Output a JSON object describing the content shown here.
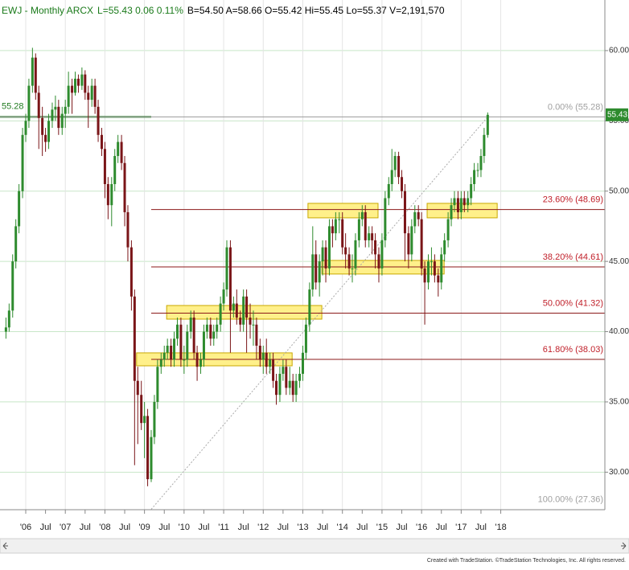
{
  "chart_data": {
    "type": "candlestick",
    "title_parts": [
      {
        "text": "EWJ - Monthly ARCX",
        "color": "#1a7a1a"
      },
      {
        "text": "L=55.43 0.06 0.11%",
        "color": "#1a7a1a"
      },
      {
        "text": "B=54.50 A=58.66 O=55.42 Hi=55.45 Lo=55.37 V=2,191,570",
        "color": "#000000"
      }
    ],
    "credit": "Created with TradeStation. ©TradeStation Technologies, Inc. All rights reserved.",
    "up_color": "#2e8b2e",
    "down_color": "#7a1518",
    "xlim": [
      2005.35,
      2020.63
    ],
    "ylim": [
      27.33,
      63.6
    ],
    "yticks": [
      {
        "value": 30,
        "label": "30.00"
      },
      {
        "value": 35,
        "label": "35.00"
      },
      {
        "value": 40,
        "label": "40.00"
      },
      {
        "value": 45,
        "label": "45.00"
      },
      {
        "value": 50,
        "label": "50.00"
      },
      {
        "value": 55,
        "label": "55.00"
      },
      {
        "value": 60,
        "label": "60.00"
      }
    ],
    "xticks": [
      {
        "value": 2006,
        "label": "'06"
      },
      {
        "value": 2006.5,
        "label": "Jul"
      },
      {
        "value": 2007,
        "label": "'07"
      },
      {
        "value": 2007.5,
        "label": "Jul"
      },
      {
        "value": 2008,
        "label": "'08"
      },
      {
        "value": 2008.5,
        "label": "Jul"
      },
      {
        "value": 2009,
        "label": "'09"
      },
      {
        "value": 2009.5,
        "label": "Jul"
      },
      {
        "value": 2010,
        "label": "'10"
      },
      {
        "value": 2010.5,
        "label": "Jul"
      },
      {
        "value": 2011,
        "label": "'11"
      },
      {
        "value": 2011.5,
        "label": "Jul"
      },
      {
        "value": 2012,
        "label": "'12"
      },
      {
        "value": 2012.5,
        "label": "Jul"
      },
      {
        "value": 2013,
        "label": "'13"
      },
      {
        "value": 2013.5,
        "label": "Jul"
      },
      {
        "value": 2014,
        "label": "'14"
      },
      {
        "value": 2014.5,
        "label": "Jul"
      },
      {
        "value": 2015,
        "label": "'15"
      },
      {
        "value": 2015.5,
        "label": "Jul"
      },
      {
        "value": 2016,
        "label": "'16"
      },
      {
        "value": 2016.5,
        "label": "Jul"
      },
      {
        "value": 2017,
        "label": "'17"
      },
      {
        "value": 2017.5,
        "label": "Jul"
      },
      {
        "value": 2018,
        "label": "'18"
      }
    ],
    "x": [
      2005.5,
      2005.58,
      2005.67,
      2005.75,
      2005.83,
      2005.92,
      2006,
      2006.08,
      2006.17,
      2006.25,
      2006.33,
      2006.42,
      2006.5,
      2006.58,
      2006.67,
      2006.75,
      2006.83,
      2006.92,
      2007,
      2007.08,
      2007.17,
      2007.25,
      2007.33,
      2007.42,
      2007.5,
      2007.58,
      2007.67,
      2007.75,
      2007.83,
      2007.92,
      2008,
      2008.08,
      2008.17,
      2008.25,
      2008.33,
      2008.42,
      2008.5,
      2008.58,
      2008.67,
      2008.75,
      2008.83,
      2008.92,
      2009,
      2009.08,
      2009.17,
      2009.25,
      2009.33,
      2009.42,
      2009.5,
      2009.58,
      2009.67,
      2009.75,
      2009.83,
      2009.92,
      2010,
      2010.08,
      2010.17,
      2010.25,
      2010.33,
      2010.42,
      2010.5,
      2010.58,
      2010.67,
      2010.75,
      2010.83,
      2010.92,
      2011,
      2011.08,
      2011.17,
      2011.25,
      2011.33,
      2011.42,
      2011.5,
      2011.58,
      2011.67,
      2011.75,
      2011.83,
      2011.92,
      2012,
      2012.08,
      2012.17,
      2012.25,
      2012.33,
      2012.42,
      2012.5,
      2012.58,
      2012.67,
      2012.75,
      2012.83,
      2012.92,
      2013,
      2013.08,
      2013.17,
      2013.25,
      2013.33,
      2013.42,
      2013.5,
      2013.58,
      2013.67,
      2013.75,
      2013.83,
      2013.92,
      2014,
      2014.08,
      2014.17,
      2014.25,
      2014.33,
      2014.42,
      2014.5,
      2014.58,
      2014.67,
      2014.75,
      2014.83,
      2014.92,
      2015,
      2015.08,
      2015.17,
      2015.25,
      2015.33,
      2015.42,
      2015.5,
      2015.58,
      2015.67,
      2015.75,
      2015.83,
      2015.92,
      2016,
      2016.08,
      2016.17,
      2016.25,
      2016.33,
      2016.42,
      2016.5,
      2016.58,
      2016.67,
      2016.75,
      2016.83,
      2016.92,
      2017,
      2017.08,
      2017.17,
      2017.25,
      2017.33,
      2017.42,
      2017.5,
      2017.58,
      2017.67
    ],
    "open": [
      40.0,
      40.3,
      41.5,
      45.0,
      47.5,
      50.0,
      54.0,
      55.0,
      57.5,
      59.5,
      57.0,
      55.2,
      54.0,
      53.5,
      55.0,
      55.8,
      56.0,
      54.5,
      55.5,
      56.0,
      57.5,
      57.0,
      58.0,
      57.5,
      58.3,
      57.0,
      56.5,
      57.5,
      56.0,
      54.0,
      53.0,
      50.5,
      49.0,
      50.5,
      52.5,
      53.5,
      52.0,
      48.5,
      46.0,
      42.5,
      36.5,
      35.5,
      33.5,
      34.0,
      29.5,
      32.5,
      35.0,
      37.5,
      38.0,
      38.5,
      39.0,
      38.0,
      39.5,
      40.5,
      38.0,
      38.0,
      40.0,
      41.0,
      38.5,
      37.5,
      38.0,
      40.0,
      40.5,
      39.5,
      40.0,
      40.5,
      42.0,
      43.0,
      46.0,
      41.5,
      42.0,
      41.0,
      40.5,
      42.5,
      41.0,
      40.5,
      40.5,
      39.0,
      38.0,
      38.5,
      37.5,
      38.0,
      36.5,
      35.5,
      37.0,
      37.5,
      36.0,
      36.5,
      35.5,
      36.5,
      37.0,
      38.5,
      40.5,
      43.0,
      45.5,
      43.5,
      45.0,
      46.0,
      44.5,
      47.5,
      47.0,
      48.0,
      48.0,
      46.0,
      45.5,
      44.5,
      44.5,
      46.5,
      48.0,
      48.5,
      46.5,
      47.0,
      46.5,
      45.5,
      44.5,
      46.5,
      49.5,
      50.5,
      51.5,
      52.5,
      51.0,
      50.0,
      47.0,
      45.5,
      47.5,
      48.5,
      48.0,
      44.5,
      43.5,
      45.0,
      45.0,
      44.0,
      43.5,
      45.5,
      46.5,
      48.0,
      49.0,
      49.5,
      48.5,
      49.5,
      49.0,
      49.5,
      50.5,
      51.5,
      51.5,
      52.5,
      54.0
    ],
    "high": [
      41.0,
      42.0,
      45.5,
      48.0,
      50.5,
      54.5,
      55.5,
      58.0,
      60.2,
      59.8,
      57.5,
      56.0,
      54.5,
      55.5,
      56.3,
      56.8,
      56.5,
      56.0,
      56.5,
      58.5,
      58.0,
      58.5,
      58.3,
      58.8,
      58.6,
      57.5,
      58.0,
      58.0,
      56.5,
      54.5,
      53.5,
      51.0,
      51.0,
      53.0,
      54.0,
      54.0,
      52.5,
      49.0,
      46.5,
      43.0,
      37.5,
      36.5,
      35.0,
      34.5,
      33.0,
      35.5,
      38.0,
      38.5,
      39.0,
      39.5,
      39.5,
      40.0,
      41.0,
      41.0,
      39.0,
      40.5,
      41.5,
      41.5,
      39.0,
      38.5,
      40.5,
      41.0,
      41.0,
      40.5,
      41.0,
      42.5,
      43.5,
      46.5,
      46.5,
      42.5,
      43.0,
      41.5,
      43.0,
      43.0,
      42.0,
      41.5,
      41.0,
      39.5,
      39.0,
      39.5,
      38.5,
      38.5,
      37.0,
      37.5,
      38.0,
      38.0,
      37.5,
      37.0,
      37.0,
      37.5,
      39.0,
      41.0,
      43.5,
      47.5,
      46.5,
      45.5,
      46.5,
      46.5,
      48.0,
      48.0,
      48.5,
      48.5,
      48.5,
      47.0,
      46.0,
      45.5,
      47.0,
      48.5,
      49.0,
      49.0,
      47.5,
      47.5,
      47.0,
      46.0,
      47.0,
      50.0,
      51.0,
      53.0,
      52.8,
      52.8,
      51.5,
      50.5,
      47.5,
      48.0,
      49.0,
      49.0,
      48.5,
      45.0,
      45.5,
      46.0,
      45.5,
      44.5,
      46.0,
      47.0,
      48.5,
      49.5,
      50.0,
      50.0,
      50.0,
      50.0,
      50.0,
      51.0,
      52.0,
      52.0,
      53.0,
      54.5,
      55.6
    ],
    "low": [
      39.5,
      40.0,
      41.0,
      44.5,
      47.0,
      49.5,
      53.5,
      54.5,
      57.0,
      56.5,
      53.0,
      52.5,
      52.8,
      53.0,
      54.5,
      55.0,
      54.0,
      54.0,
      54.5,
      55.5,
      55.5,
      56.8,
      57.0,
      57.2,
      56.5,
      54.5,
      56.0,
      55.5,
      53.5,
      52.5,
      49.5,
      48.0,
      47.5,
      50.0,
      52.0,
      51.5,
      47.5,
      45.0,
      41.5,
      30.5,
      32.0,
      33.0,
      31.0,
      29.0,
      29.3,
      32.0,
      34.5,
      37.0,
      37.5,
      38.0,
      37.5,
      37.5,
      39.0,
      37.5,
      37.0,
      37.5,
      39.5,
      38.0,
      36.5,
      37.0,
      37.5,
      39.5,
      39.0,
      39.0,
      39.5,
      40.0,
      41.5,
      42.5,
      38.5,
      41.0,
      40.5,
      40.0,
      40.0,
      38.5,
      39.5,
      39.0,
      38.0,
      37.5,
      37.0,
      37.0,
      37.0,
      36.0,
      34.8,
      35.0,
      36.5,
      35.5,
      35.5,
      35.0,
      35.0,
      36.0,
      36.5,
      38.0,
      40.0,
      42.5,
      43.0,
      42.5,
      44.0,
      43.5,
      44.0,
      46.0,
      46.5,
      47.0,
      45.5,
      44.5,
      44.0,
      43.5,
      44.0,
      46.0,
      47.5,
      46.0,
      46.0,
      45.5,
      44.5,
      43.5,
      44.0,
      46.0,
      49.0,
      50.0,
      51.0,
      50.5,
      49.5,
      45.0,
      44.5,
      45.0,
      47.0,
      47.5,
      44.0,
      40.5,
      43.0,
      44.0,
      43.5,
      42.5,
      43.0,
      45.0,
      46.0,
      47.5,
      48.5,
      48.0,
      48.0,
      48.5,
      48.5,
      49.0,
      50.0,
      51.0,
      51.0,
      52.0,
      53.8
    ],
    "close": [
      40.3,
      41.5,
      45.0,
      47.5,
      50.0,
      54.0,
      55.0,
      57.5,
      59.5,
      57.0,
      55.2,
      54.0,
      53.5,
      55.0,
      55.8,
      56.0,
      54.5,
      55.5,
      56.0,
      57.5,
      57.0,
      58.0,
      57.5,
      58.3,
      57.0,
      56.5,
      57.5,
      56.0,
      54.0,
      53.0,
      50.5,
      49.0,
      50.5,
      52.5,
      53.5,
      52.0,
      48.5,
      46.0,
      42.5,
      36.5,
      35.5,
      33.5,
      34.0,
      29.5,
      32.5,
      35.0,
      37.5,
      38.0,
      38.5,
      39.0,
      38.0,
      39.5,
      40.5,
      38.0,
      38.0,
      40.0,
      41.0,
      38.5,
      37.5,
      38.0,
      40.0,
      40.5,
      39.5,
      40.0,
      40.5,
      42.0,
      43.0,
      46.0,
      41.5,
      42.0,
      41.0,
      40.5,
      42.5,
      41.0,
      40.5,
      40.5,
      39.0,
      38.0,
      38.5,
      37.5,
      38.0,
      36.5,
      35.5,
      37.0,
      37.5,
      36.0,
      36.5,
      35.5,
      36.5,
      37.0,
      38.5,
      40.5,
      43.0,
      45.5,
      43.5,
      45.0,
      46.0,
      44.5,
      47.5,
      47.0,
      48.0,
      48.0,
      46.0,
      45.5,
      44.5,
      44.5,
      46.5,
      48.0,
      48.5,
      46.5,
      47.0,
      46.5,
      45.5,
      44.5,
      46.5,
      49.5,
      50.5,
      51.5,
      52.5,
      51.0,
      50.0,
      47.0,
      45.5,
      47.5,
      48.5,
      48.0,
      44.5,
      43.5,
      45.0,
      45.0,
      44.0,
      43.5,
      45.5,
      46.5,
      48.0,
      49.0,
      49.5,
      48.5,
      49.5,
      49.0,
      49.5,
      50.5,
      51.5,
      51.5,
      52.5,
      54.0,
      55.43
    ],
    "zones": [
      {
        "x": [
          2008.8,
          2012.73
        ],
        "y": [
          37.57,
          38.49
        ]
      },
      {
        "x": [
          2009.56,
          2013.48
        ],
        "y": [
          40.89,
          41.86
        ]
      },
      {
        "x": [
          2013.13,
          2014.9
        ],
        "y": [
          48.1,
          49.13
        ]
      },
      {
        "x": [
          2013.48,
          2016.57
        ],
        "y": [
          44.1,
          45.07
        ]
      },
      {
        "x": [
          2016.14,
          2017.91
        ],
        "y": [
          48.1,
          49.13
        ]
      }
    ],
    "zone_fill": "#fff08a",
    "zone_stroke": "#c9a800",
    "fib_x": [
      2009.17,
      2017.67
    ],
    "fib_levels": [
      {
        "value": 55.28,
        "label": "0.00% (55.28)",
        "color": "#a0a0a0",
        "line_color": "#9a9a9a"
      },
      {
        "value": 48.69,
        "label": "23.60% (48.69)",
        "color": "#c0202a",
        "line_color": "#8b1a1a"
      },
      {
        "value": 44.61,
        "label": "38.20% (44.61)",
        "color": "#c0202a",
        "line_color": "#8b1a1a"
      },
      {
        "value": 41.32,
        "label": "50.00% (41.32)",
        "color": "#c0202a",
        "line_color": "#8b1a1a"
      },
      {
        "value": 38.03,
        "label": "61.80% (38.03)",
        "color": "#c0202a",
        "line_color": "#8b1a1a"
      },
      {
        "value": 27.36,
        "label": "100.00% (27.36)",
        "color": "#a0a0a0"
      }
    ],
    "level_line": {
      "value": 55.28,
      "color": "#1f7a1f"
    },
    "grid": true
  }
}
